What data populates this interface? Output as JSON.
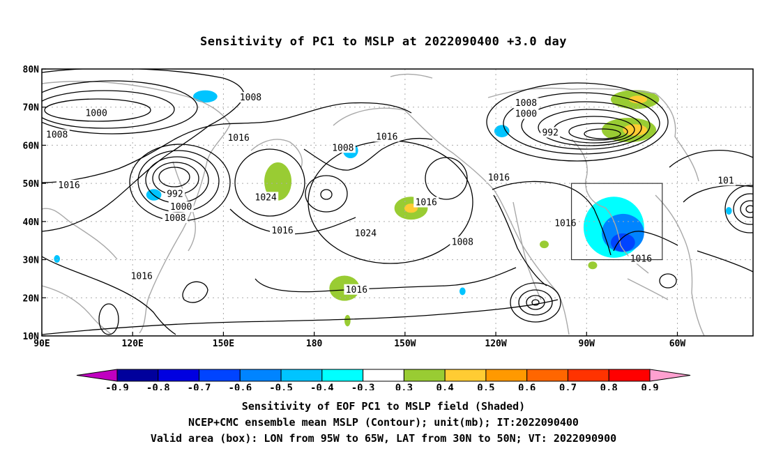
{
  "title": "Sensitivity of PC1 to MSLP at 2022090400 +3.0 day",
  "footer": {
    "line1": "Sensitivity of EOF PC1 to MSLP field (Shaded)",
    "line2": "NCEP+CMC ensemble mean MSLP (Contour); unit(mb); IT:2022090400",
    "line3": "Valid area (box): LON from 95W to 65W, LAT from 30N to 50N; VT: 2022090900"
  },
  "map": {
    "lon_ticks": [
      "90E",
      "120E",
      "150E",
      "180",
      "150W",
      "120W",
      "90W",
      "60W"
    ],
    "lat_ticks": [
      "80N",
      "70N",
      "60N",
      "50N",
      "40N",
      "30N",
      "20N",
      "10N"
    ],
    "contour_labels": [
      {
        "text": "1008",
        "lon": 159,
        "lat": 72.5
      },
      {
        "text": "1000",
        "lon": 108,
        "lat": 68.4
      },
      {
        "text": "1008",
        "lon": 95,
        "lat": 62.7
      },
      {
        "text": "1016",
        "lon": 155,
        "lat": 61.9
      },
      {
        "text": "1016",
        "lon": 99,
        "lat": 49.5
      },
      {
        "text": "992",
        "lon": 134,
        "lat": 47.2
      },
      {
        "text": "1000",
        "lon": 136,
        "lat": 43.8
      },
      {
        "text": "1008",
        "lon": 134,
        "lat": 40.9
      },
      {
        "text": "1024",
        "lon": 164,
        "lat": 46.3
      },
      {
        "text": "1008",
        "lon": 189.5,
        "lat": 59.3
      },
      {
        "text": "1016",
        "lon": 204,
        "lat": 62.2
      },
      {
        "text": "1016",
        "lon": 169.5,
        "lat": 37.6
      },
      {
        "text": "1024",
        "lon": 197,
        "lat": 36.9
      },
      {
        "text": "1016",
        "lon": 217,
        "lat": 45.0
      },
      {
        "text": "1016",
        "lon": 123,
        "lat": 25.6
      },
      {
        "text": "1016",
        "lon": 194,
        "lat": 22.1
      },
      {
        "text": "1008",
        "lon": 250,
        "lat": 71.0
      },
      {
        "text": "1000",
        "lon": 250,
        "lat": 68.2
      },
      {
        "text": "992",
        "lon": 258,
        "lat": 63.3
      },
      {
        "text": "1016",
        "lon": 241,
        "lat": 51.5
      },
      {
        "text": "1008",
        "lon": 229,
        "lat": 34.6
      },
      {
        "text": "1016",
        "lon": 263,
        "lat": 39.5
      },
      {
        "text": "1016",
        "lon": 288,
        "lat": 30.2
      },
      {
        "text": "101",
        "lon": 316,
        "lat": 50.7
      }
    ],
    "valid_box": {
      "lon_min": 265,
      "lon_max": 295,
      "lat_min": 30,
      "lat_max": 50
    },
    "shading": [
      {
        "lon": 144,
        "lat": 72.8,
        "rx": 4,
        "ry": 1.6,
        "value": -0.4
      },
      {
        "lon": 127,
        "lat": 47.0,
        "rx": 2.5,
        "ry": 1.5,
        "value": -0.4
      },
      {
        "lon": 192,
        "lat": 58.6,
        "rx": 2.5,
        "ry": 2,
        "value": -0.4
      },
      {
        "lon": 242,
        "lat": 63.7,
        "rx": 2.5,
        "ry": 1.6,
        "value": -0.4
      },
      {
        "lon": 95,
        "lat": 30.2,
        "rx": 1,
        "ry": 1,
        "value": -0.4
      },
      {
        "lon": 229,
        "lat": 21.7,
        "rx": 1,
        "ry": 1,
        "value": -0.4
      },
      {
        "lon": 317,
        "lat": 42.8,
        "rx": 1,
        "ry": 1,
        "value": -0.4
      },
      {
        "lon": 279,
        "lat": 38.5,
        "rx": 10,
        "ry": 8,
        "value": -0.3
      },
      {
        "lon": 282,
        "lat": 37.0,
        "rx": 7,
        "ry": 5,
        "value": -0.5
      },
      {
        "lon": 282,
        "lat": 34.5,
        "rx": 4,
        "ry": 2.4,
        "value": -0.6
      },
      {
        "lon": 168,
        "lat": 50.5,
        "rx": 4.5,
        "ry": 5,
        "value": 0.3
      },
      {
        "lon": 212,
        "lat": 43.5,
        "rx": 5.5,
        "ry": 3,
        "value": 0.3
      },
      {
        "lon": 212,
        "lat": 43.5,
        "rx": 2.2,
        "ry": 1.2,
        "value": 0.4
      },
      {
        "lon": 190,
        "lat": 22.5,
        "rx": 5,
        "ry": 3.3,
        "value": 0.3
      },
      {
        "lon": 191,
        "lat": 14.0,
        "rx": 1,
        "ry": 1.5,
        "value": 0.3
      },
      {
        "lon": 284,
        "lat": 64.0,
        "rx": 9,
        "ry": 3.2,
        "value": 0.3
      },
      {
        "lon": 286,
        "lat": 72.0,
        "rx": 8,
        "ry": 2.5,
        "value": 0.3
      },
      {
        "lon": 286,
        "lat": 64.0,
        "rx": 4,
        "ry": 1.5,
        "value": 0.4
      },
      {
        "lon": 287,
        "lat": 72.0,
        "rx": 3,
        "ry": 1,
        "value": 0.4
      },
      {
        "lon": 256,
        "lat": 34.0,
        "rx": 1.5,
        "ry": 1,
        "value": 0.3
      },
      {
        "lon": 272,
        "lat": 28.5,
        "rx": 1.5,
        "ry": 1,
        "value": 0.3
      }
    ]
  },
  "colorbar": {
    "labels": [
      "-0.9",
      "-0.8",
      "-0.7",
      "-0.6",
      "-0.5",
      "-0.4",
      "-0.3",
      "0.3",
      "0.4",
      "0.5",
      "0.6",
      "0.7",
      "0.8",
      "0.9"
    ],
    "colors": [
      "#c000c0",
      "#00009c",
      "#0000e0",
      "#0044ff",
      "#0084ff",
      "#00c4ff",
      "#00ffff",
      "#ffffff",
      "#99cc33",
      "#ffcc33",
      "#ff9900",
      "#ff6600",
      "#ff3300",
      "#ff0000",
      "#ffa0d0"
    ]
  }
}
